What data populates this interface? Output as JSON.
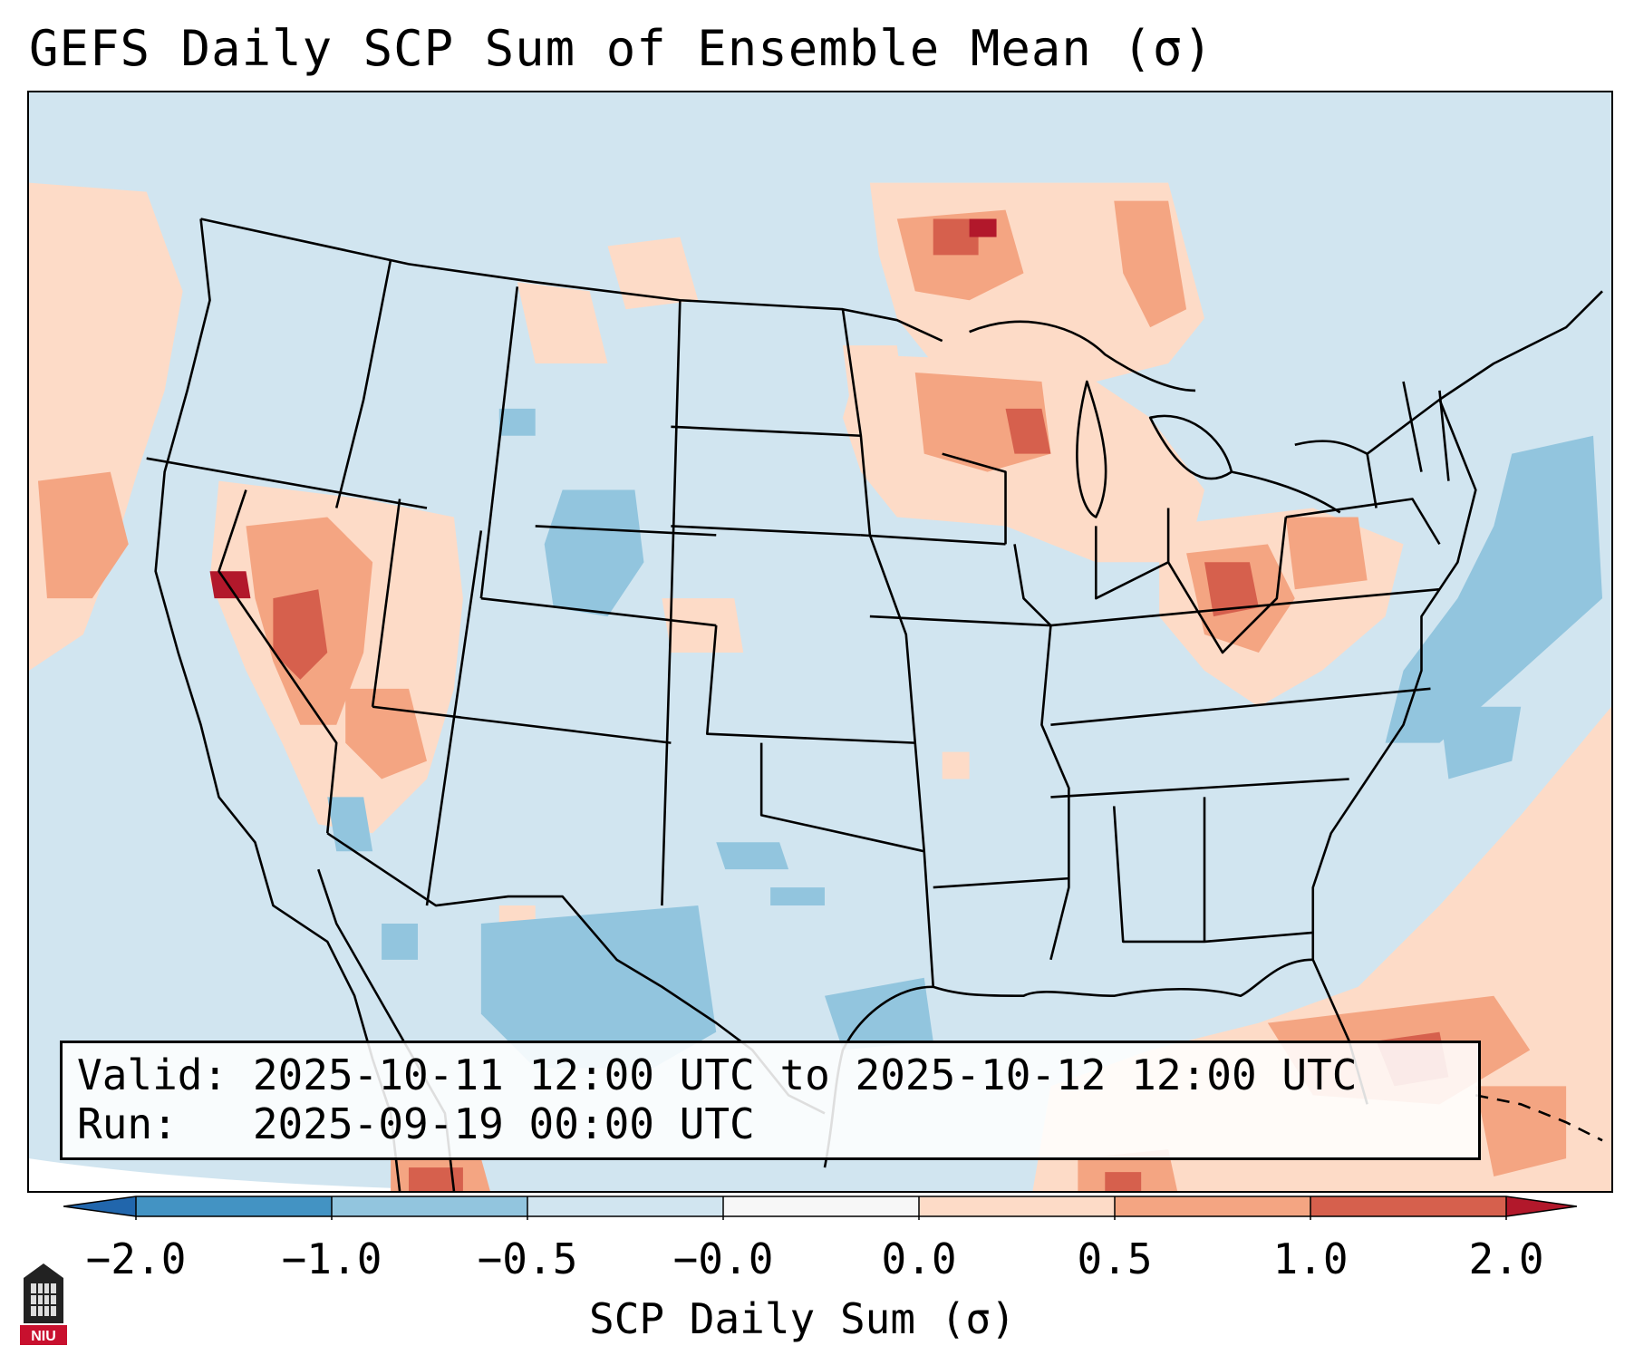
{
  "title": "GEFS Daily SCP Sum of Ensemble Mean (σ)",
  "info": {
    "valid_line": "Valid: 2025-10-11 12:00 UTC to 2025-10-12 12:00 UTC",
    "run_line": "Run:   2025-09-19 00:00 UTC"
  },
  "colorbar": {
    "label": "SCP Daily Sum (σ)",
    "ticks": [
      "−2.0",
      "−1.0",
      "−0.5",
      "−0.0",
      "0.0",
      "0.5",
      "1.0",
      "2.0"
    ],
    "bins": [
      {
        "range": "-2.0 to -1.0",
        "color": "#4393c3"
      },
      {
        "range": "-1.0 to -0.5",
        "color": "#92c5de"
      },
      {
        "range": "-0.5 to -0.0",
        "color": "#d1e5f0"
      },
      {
        "range": "-0.0 to 0.0",
        "color": "#f7f7f7"
      },
      {
        "range": "0.0 to 0.5",
        "color": "#fddbc7"
      },
      {
        "range": "0.5 to 1.0",
        "color": "#f4a582"
      },
      {
        "range": "1.0 to 2.0",
        "color": "#d6604d"
      }
    ],
    "under_color": "#2166ac",
    "over_color": "#b2182b"
  },
  "logo": {
    "text": "NIU"
  },
  "colors": {
    "background_field": "#d1e5f0",
    "positive_light": "#fddbc7",
    "positive_mid": "#f4a582",
    "positive_strong": "#d6604d",
    "positive_max": "#b2182b",
    "negative_light": "#92c5de",
    "logo_red": "#c8102e"
  }
}
